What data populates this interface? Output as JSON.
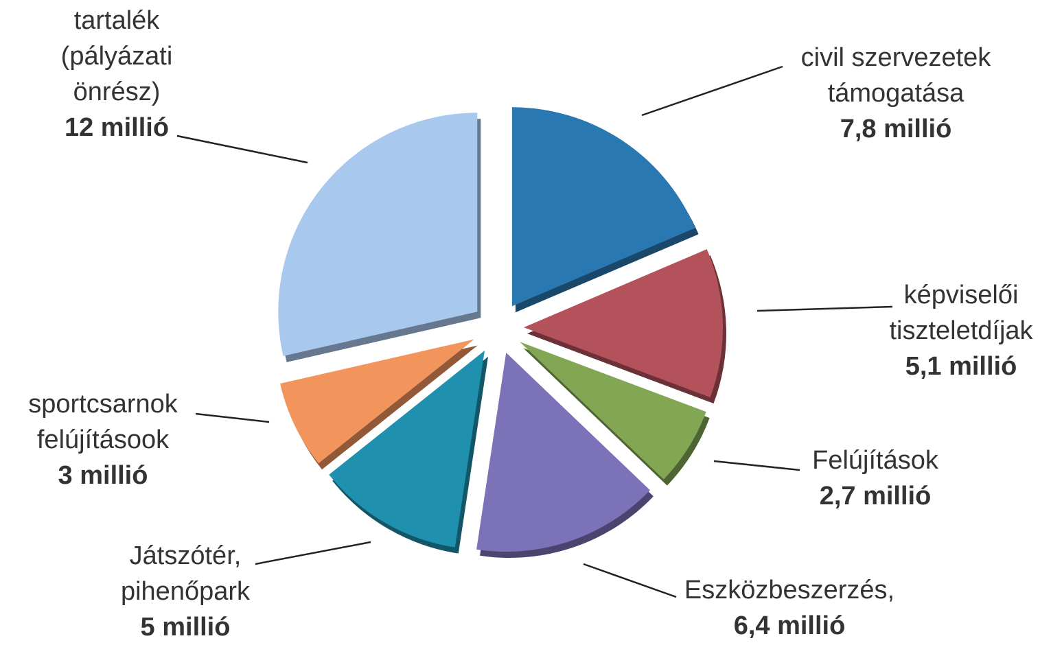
{
  "chart_data": {
    "type": "pie",
    "categories": [
      "civil szervezetek támogatása",
      "képviselői tiszteletdíjak",
      "Felújítások",
      "Eszközbeszerzés,",
      "Játszótér, pihenőpark",
      "sportcsarnok felújításook",
      "tartalék (pályázati önrész)"
    ],
    "values": [
      7.8,
      5.1,
      2.7,
      6.4,
      5,
      3,
      12
    ],
    "value_labels": [
      "7,8 millió",
      "5,1 millió",
      "2,7 millió",
      "6,4 millió",
      "5 millió",
      "3 millió",
      "12 millió"
    ],
    "colors": [
      "#2a78b2",
      "#b4525c",
      "#82a653",
      "#7b72b8",
      "#1f90ae",
      "#f2955d",
      "#a9c8ee"
    ]
  }
}
